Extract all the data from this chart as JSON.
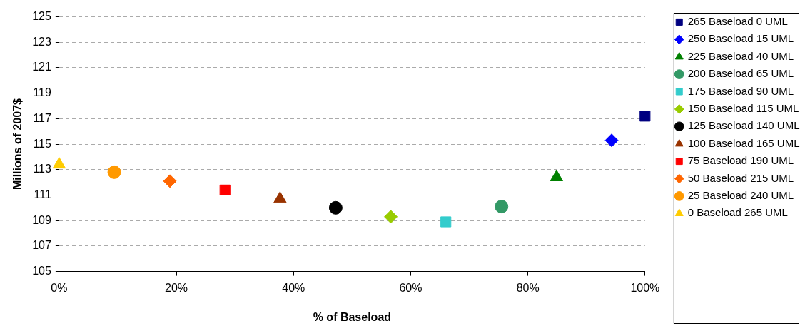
{
  "chart_data": {
    "type": "scatter",
    "xlabel": "% of Baseload",
    "ylabel": "Millions of 2007$",
    "xlim": [
      0,
      100
    ],
    "xticks": [
      {
        "value": 0,
        "label": "0%"
      },
      {
        "value": 20,
        "label": "20%"
      },
      {
        "value": 40,
        "label": "40%"
      },
      {
        "value": 60,
        "label": "60%"
      },
      {
        "value": 80,
        "label": "80%"
      },
      {
        "value": 100,
        "label": "100%"
      }
    ],
    "ylim": [
      105,
      125
    ],
    "yticks": [
      105,
      107,
      109,
      111,
      113,
      115,
      117,
      119,
      121,
      123,
      125
    ],
    "grid": "y",
    "legend": "right",
    "series": [
      {
        "name": "265 Baseload 0 UML",
        "color": "#000080",
        "marker": "square",
        "x": [
          100
        ],
        "values": [
          117.2
        ]
      },
      {
        "name": "250 Baseload 15 UML",
        "color": "#0000ff",
        "marker": "diamond",
        "x": [
          94.3
        ],
        "values": [
          115.3
        ]
      },
      {
        "name": "225 Baseload 40 UML",
        "color": "#008000",
        "marker": "triangle",
        "x": [
          84.9
        ],
        "values": [
          112.4
        ]
      },
      {
        "name": "200 Baseload 65 UML",
        "color": "#339966",
        "marker": "circle",
        "x": [
          75.5
        ],
        "values": [
          110.1
        ]
      },
      {
        "name": "175 Baseload 90 UML",
        "color": "#33cccc",
        "marker": "square",
        "x": [
          66.0
        ],
        "values": [
          108.9
        ]
      },
      {
        "name": "150 Baseload 115 UML",
        "color": "#99cc00",
        "marker": "diamond",
        "x": [
          56.6
        ],
        "values": [
          109.3
        ]
      },
      {
        "name": "125 Baseload 140 UML",
        "color": "#000000",
        "marker": "circle",
        "x": [
          47.2
        ],
        "values": [
          110.0
        ]
      },
      {
        "name": "100 Baseload 165 UML",
        "color": "#993300",
        "marker": "triangle",
        "x": [
          37.7
        ],
        "values": [
          110.7
        ]
      },
      {
        "name": "75 Baseload 190 UML",
        "color": "#ff0000",
        "marker": "square",
        "x": [
          28.3
        ],
        "values": [
          111.4
        ]
      },
      {
        "name": "50 Baseload 215 UML",
        "color": "#ff6600",
        "marker": "diamond",
        "x": [
          18.9
        ],
        "values": [
          112.1
        ]
      },
      {
        "name": "25 Baseload 240 UML",
        "color": "#ff9900",
        "marker": "circle",
        "x": [
          9.4
        ],
        "values": [
          112.8
        ]
      },
      {
        "name": "0 Baseload 265 UML",
        "color": "#ffcc00",
        "marker": "triangle",
        "x": [
          0
        ],
        "values": [
          113.4
        ]
      }
    ]
  }
}
